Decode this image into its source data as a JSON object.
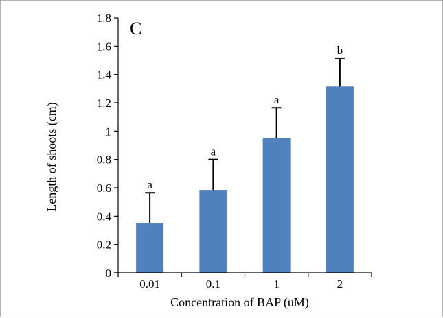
{
  "chart_data": {
    "type": "bar",
    "panel_label": "C",
    "categories": [
      "0.01",
      "0.1",
      "1",
      "2"
    ],
    "values": [
      0.35,
      0.585,
      0.95,
      1.315
    ],
    "error_bars": [
      0.215,
      0.215,
      0.215,
      0.2
    ],
    "significance_letters": [
      "a",
      "a",
      "a",
      "b"
    ],
    "xlabel": "Concentration of BAP (uM)",
    "ylabel": "Length of shoots (cm)",
    "ylim": [
      0,
      1.8
    ],
    "yticks": [
      "0",
      "0.2",
      "0.4",
      "0.6",
      "0.8",
      "1",
      "1.2",
      "1.4",
      "1.6",
      "1.8"
    ],
    "grid": false,
    "legend": "none",
    "bar_color": "#4f81bd",
    "error_bar_color": "#000000"
  }
}
